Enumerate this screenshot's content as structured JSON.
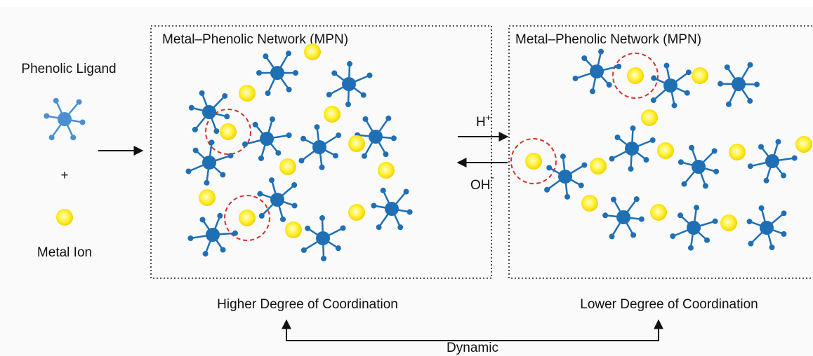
{
  "legend": {
    "ligand_label": "Phenolic Ligand",
    "plus": "+",
    "metal_label": "Metal Ion"
  },
  "panels": [
    {
      "title": "Metal–Phenolic Network (MPN)",
      "caption": "Higher Degree of Coordination"
    },
    {
      "title": "Metal–Phenolic Network (MPN)",
      "caption": "Lower Degree of Coordination"
    }
  ],
  "forward": {
    "base": "H",
    "charge": "+"
  },
  "reverse": {
    "base": "OH",
    "charge": "-"
  },
  "bottom_label": "Dynamic"
}
